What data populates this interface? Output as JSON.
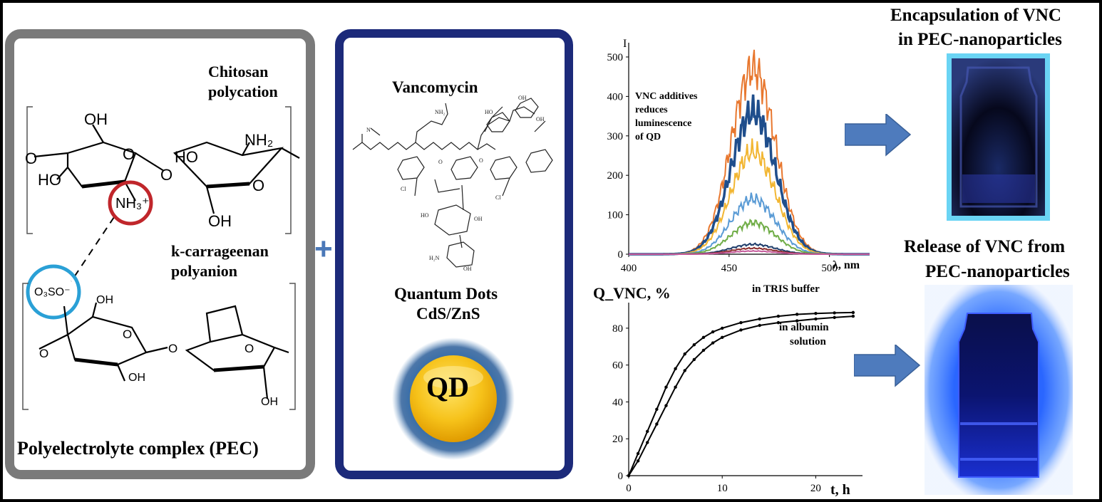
{
  "pec_panel": {
    "chitosan_label": [
      "Chitosan",
      "polycation"
    ],
    "carrageenan_label": [
      "k-carrageenan",
      "polyanion"
    ],
    "chitosan_groups": [
      "OH",
      "O",
      "HO",
      "NH₂",
      "NH₃⁺",
      "O",
      "HO",
      "O",
      "OH",
      "O"
    ],
    "carrageenan_groups": [
      "O₃SO⁻",
      "OH",
      "O",
      "O",
      "O",
      "OH",
      "O",
      "OH"
    ],
    "caption": "Polyelectrolyte complex (PEC)"
  },
  "plus_sign": "+",
  "vnc_panel": {
    "vancomycin_label": "Vancomycin",
    "qd_label": [
      "Quantum Dots",
      "CdS/ZnS"
    ],
    "qd_text": "QD"
  },
  "luminescence_chart": {
    "annotation": [
      "VNC additives",
      "reduces",
      "luminescence",
      "of QD"
    ]
  },
  "release_chart": {
    "curve_labels": {
      "tris": "in TRIS buffer",
      "albumin": [
        "in albumin",
        "solution"
      ]
    }
  },
  "right_column": {
    "encapsulation_title": [
      "Encapsulation of VNC",
      "in PEC-nanoparticles"
    ],
    "release_title": [
      "Release of VNC from",
      "PEC-nanoparticles"
    ]
  },
  "chart_data": [
    {
      "type": "line",
      "title": "",
      "xlabel": "λ, nm",
      "ylabel": "I",
      "xlim": [
        400,
        520
      ],
      "ylim": [
        0,
        500
      ],
      "x_ticks": [
        400,
        450,
        500
      ],
      "y_ticks": [
        0,
        100,
        200,
        300,
        400,
        500
      ],
      "peak_x": 462,
      "series_peaks": [
        470,
        360,
        260,
        140,
        80,
        25,
        15,
        8
      ],
      "series_colors": [
        "#e8772e",
        "#1f4e8c",
        "#f2b632",
        "#5a9bd5",
        "#70ad47",
        "#1f3d6b",
        "#8b2d2d",
        "#c55a9a"
      ],
      "legend": "none",
      "grid": false
    },
    {
      "type": "line",
      "title": "",
      "xlabel": "t, h",
      "ylabel": "Q_VNC, %",
      "xlim": [
        0,
        25
      ],
      "ylim": [
        0,
        90
      ],
      "x_ticks": [
        0,
        10,
        20
      ],
      "y_ticks": [
        0,
        20,
        40,
        60,
        80
      ],
      "series": [
        {
          "name": "in TRIS buffer",
          "x": [
            0,
            1,
            2,
            3,
            4,
            5,
            6,
            7,
            8,
            9,
            10,
            12,
            14,
            16,
            18,
            20,
            22,
            24
          ],
          "y": [
            0,
            12,
            24,
            36,
            48,
            58,
            66,
            71,
            75,
            78,
            80,
            83,
            85,
            86.5,
            87.5,
            88,
            88.3,
            88.5
          ]
        },
        {
          "name": "in albumin solution",
          "x": [
            0,
            1,
            2,
            3,
            4,
            5,
            6,
            7,
            8,
            9,
            10,
            12,
            14,
            16,
            18,
            20,
            22,
            24
          ],
          "y": [
            0,
            8,
            18,
            28,
            38,
            48,
            57,
            63,
            68,
            72,
            75,
            79,
            81.5,
            83,
            84,
            85,
            85.8,
            86.5
          ]
        }
      ],
      "legend": "inline",
      "grid": false
    }
  ]
}
